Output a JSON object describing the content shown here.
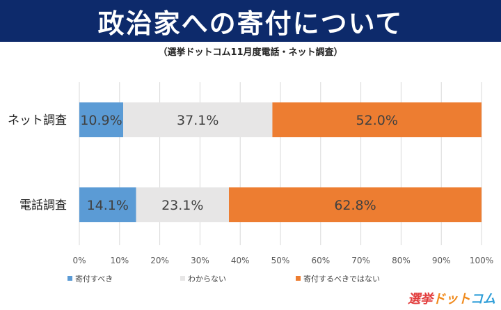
{
  "header": {
    "title": "政治家への寄付について",
    "subtitle": "（選挙ドットコム11月度電話・ネット調査）"
  },
  "chart_data": {
    "type": "bar",
    "orientation": "horizontal",
    "stacked": true,
    "categories": [
      "ネット調査",
      "電話調査"
    ],
    "series": [
      {
        "name": "寄付すべき",
        "values": [
          10.9,
          14.1
        ],
        "labels": [
          "10.9%",
          "14.1%"
        ],
        "color": "#5b9bd5"
      },
      {
        "name": "わからない",
        "values": [
          37.1,
          23.1
        ],
        "labels": [
          "37.1%",
          "23.1%"
        ],
        "color": "#e7e6e6"
      },
      {
        "name": "寄付するべきではない",
        "values": [
          52.0,
          62.8
        ],
        "labels": [
          "52.0%",
          "62.8%"
        ],
        "color": "#ed7d31"
      }
    ],
    "x_ticks": [
      "0%",
      "10%",
      "20%",
      "30%",
      "40%",
      "50%",
      "60%",
      "70%",
      "80%",
      "90%",
      "100%"
    ],
    "xlim": [
      0,
      100
    ],
    "grid": true,
    "legend_position": "bottom"
  },
  "logo": {
    "part1": "選挙",
    "part2": "ドット",
    "part3": "コム"
  }
}
